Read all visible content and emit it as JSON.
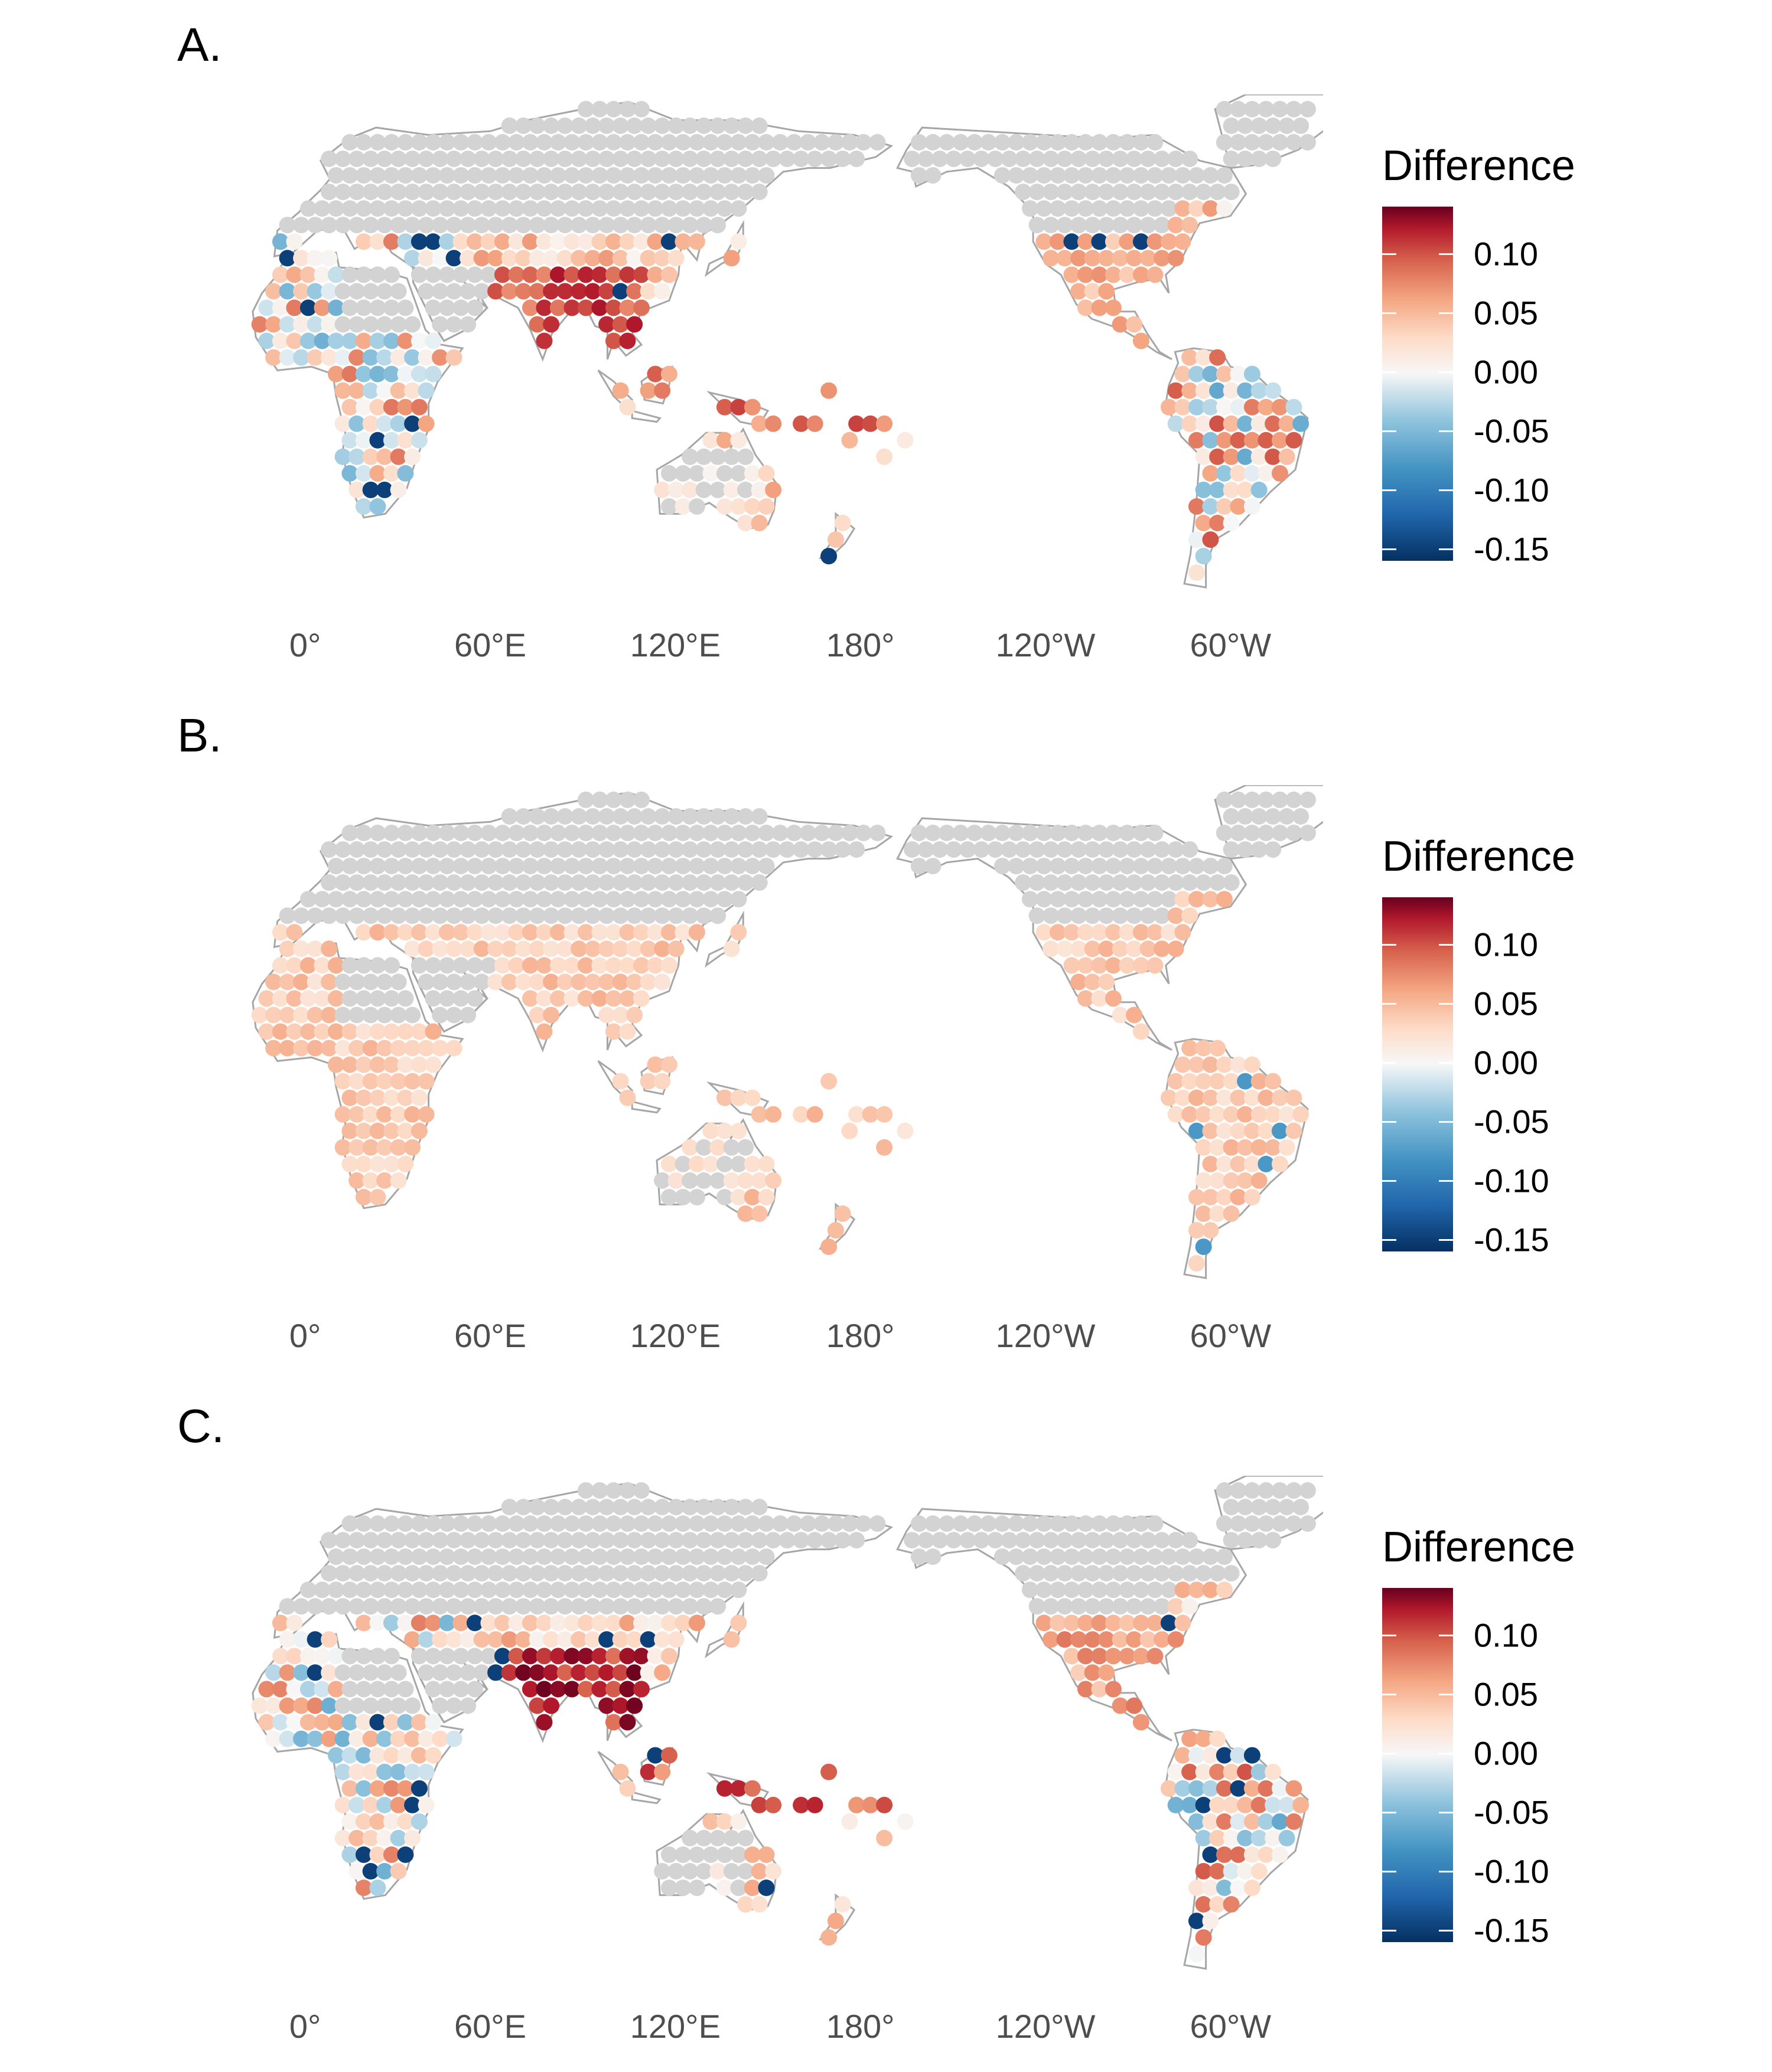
{
  "legend": {
    "title": "Difference",
    "ticks": [
      "0.10",
      "0.05",
      "0.00",
      "-0.05",
      "-0.10",
      "-0.15"
    ],
    "tick_values": [
      0.1,
      0.05,
      0.0,
      -0.05,
      -0.1,
      -0.15
    ],
    "range": [
      -0.16,
      0.14
    ],
    "colors": [
      "#053061",
      "#2166ac",
      "#4393c3",
      "#92c5de",
      "#f7f7f7",
      "#fddbc7",
      "#f4a582",
      "#d6604d",
      "#b2182b",
      "#67001f"
    ]
  },
  "axis": {
    "x_labels": [
      "0°",
      "60°E",
      "120°E",
      "180°",
      "120°W",
      "60°W"
    ],
    "x_values_lon": [
      0,
      60,
      120,
      180,
      240,
      300
    ]
  },
  "colors": {
    "na_point": "#d3d3d3",
    "coastline": "#a6a6a6"
  },
  "panels": [
    {
      "label": "A.",
      "pattern": "a"
    },
    {
      "label": "B.",
      "pattern": "b"
    },
    {
      "label": "C.",
      "pattern": "c"
    }
  ]
}
